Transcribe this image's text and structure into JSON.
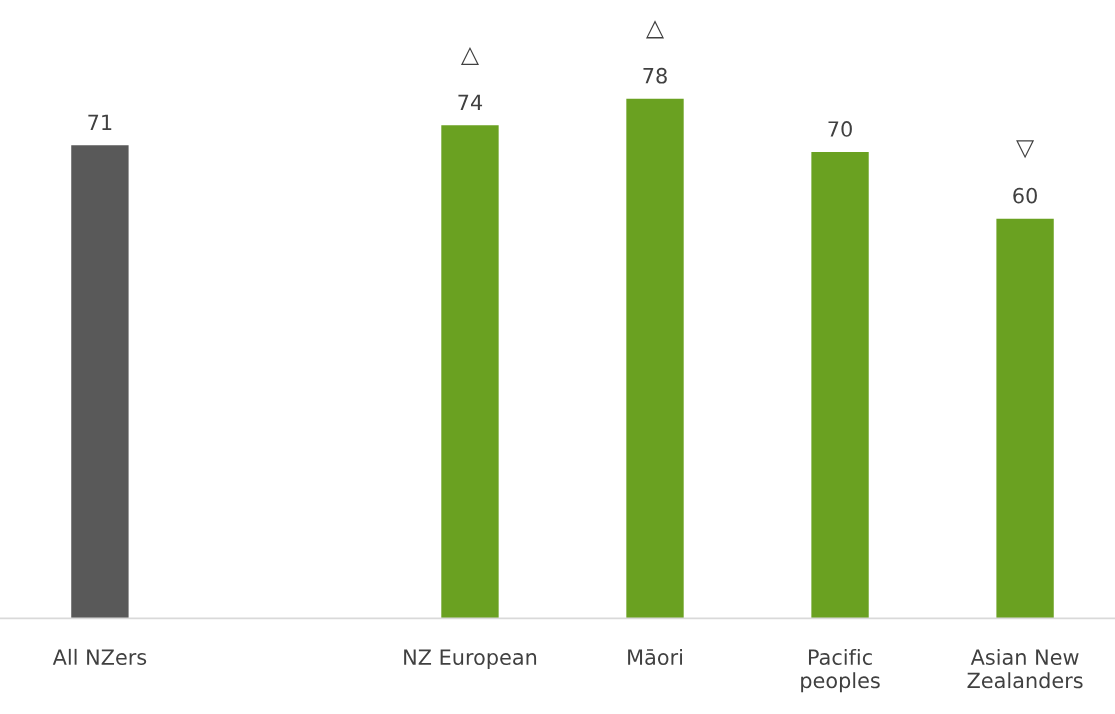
{
  "chart_data": {
    "type": "bar",
    "categories": [
      "All NZers",
      null,
      "NZ European",
      "Māori",
      "Pacific\npeoples",
      "Asian New\nZealanders"
    ],
    "values": [
      71,
      null,
      74,
      78,
      70,
      60
    ],
    "colors": [
      "#595959",
      null,
      "#6aa121",
      "#6aa121",
      "#6aa121",
      "#6aa121"
    ],
    "tick_labels": "x",
    "grid": false,
    "data_labels": true,
    "annotations": [
      {
        "text": "△",
        "x": "NZ European",
        "y": 74
      },
      {
        "text": "△",
        "x": "Māori",
        "y": 78
      },
      {
        "text": "▽",
        "x": "Asian New\nZealanders",
        "y": 60
      }
    ]
  }
}
